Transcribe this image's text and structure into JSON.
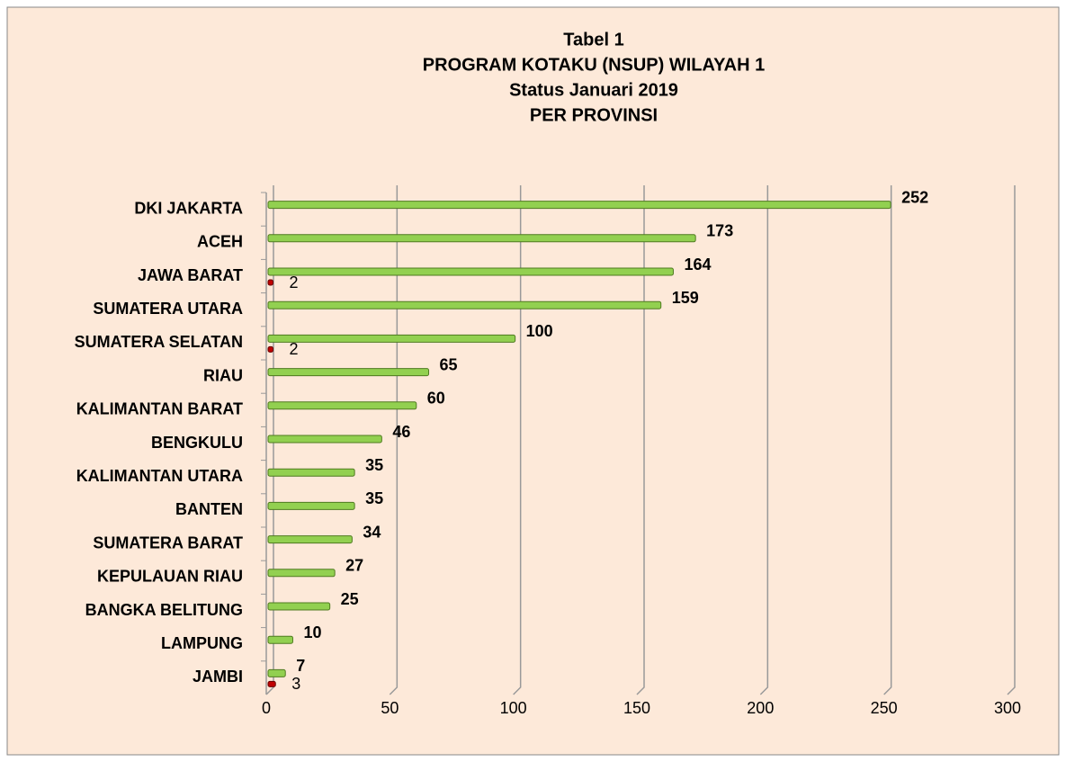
{
  "chart_data": {
    "type": "bar",
    "orientation": "horizontal",
    "title": [
      "Tabel 1",
      "PROGRAM KOTAKU (NSUP) WILAYAH 1",
      "Status Januari 2019",
      "PER PROVINSI"
    ],
    "categories": [
      "DKI JAKARTA",
      "ACEH",
      "JAWA BARAT",
      "SUMATERA UTARA",
      "SUMATERA SELATAN",
      "RIAU",
      "KALIMANTAN BARAT",
      "BENGKULU",
      "KALIMANTAN UTARA",
      "BANTEN",
      "SUMATERA BARAT",
      "KEPULAUAN RIAU",
      "BANGKA BELITUNG",
      "LAMPUNG",
      "JAMBI"
    ],
    "series": [
      {
        "color": "#92d050",
        "values": [
          252,
          173,
          164,
          159,
          100,
          65,
          60,
          46,
          35,
          35,
          34,
          27,
          25,
          10,
          7
        ]
      },
      {
        "color": "#c00000",
        "values": [
          null,
          null,
          2,
          null,
          2,
          null,
          null,
          null,
          null,
          null,
          null,
          null,
          null,
          null,
          3
        ]
      }
    ],
    "xlim": [
      0,
      300
    ],
    "xticks": [
      0,
      50,
      100,
      150,
      200,
      250,
      300
    ],
    "grid": true
  }
}
